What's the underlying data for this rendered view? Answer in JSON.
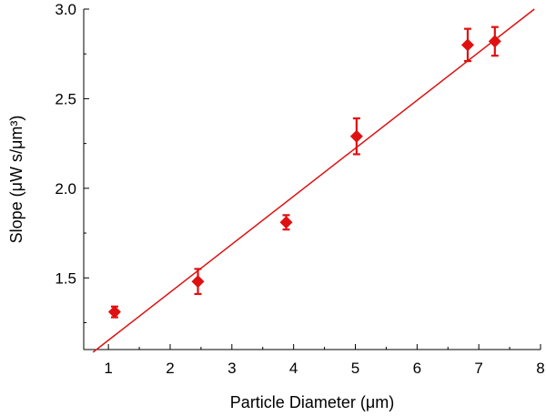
{
  "chart_data": {
    "type": "scatter",
    "xlabel": "Particle Diameter (μm)",
    "ylabel": "Slope (μW s/μm³)",
    "xlim": [
      0.6,
      8
    ],
    "ylim": [
      1.1,
      3.0
    ],
    "xticks": [
      "1",
      "2",
      "3",
      "4",
      "5",
      "6",
      "7",
      "8"
    ],
    "yticks": [
      "1.5",
      "2.0",
      "2.5",
      "3.0"
    ],
    "grid": false,
    "points": [
      {
        "x": 1.1,
        "y": 1.31,
        "err": 0.03
      },
      {
        "x": 2.45,
        "y": 1.48,
        "err": 0.07
      },
      {
        "x": 3.88,
        "y": 1.81,
        "err": 0.04
      },
      {
        "x": 5.02,
        "y": 2.29,
        "err": 0.1
      },
      {
        "x": 6.82,
        "y": 2.8,
        "err": 0.09
      },
      {
        "x": 7.26,
        "y": 2.82,
        "err": 0.08
      }
    ],
    "fit_line": {
      "x": [
        0.75,
        7.9
      ],
      "y": [
        1.085,
        3.0
      ]
    },
    "marker": "diamond",
    "color": "#e01010"
  }
}
